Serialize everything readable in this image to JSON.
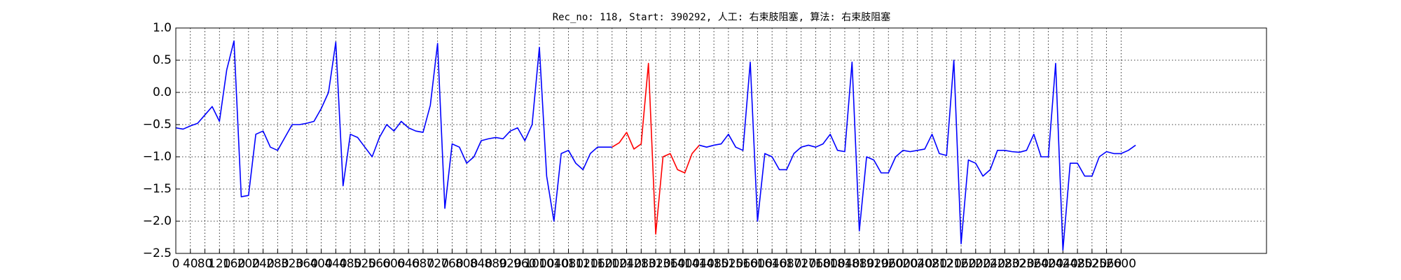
{
  "chart_data": {
    "type": "line",
    "title": "Rec_no: 118, Start: 390292, 人工: 右束肢阻塞, 算法: 右束肢阻塞",
    "x": [
      0,
      20,
      40,
      60,
      80,
      100,
      120,
      140,
      160,
      180,
      200,
      220,
      240,
      260,
      280,
      300,
      320,
      340,
      360,
      380,
      400,
      420,
      440,
      460,
      480,
      500,
      520,
      540,
      560,
      580,
      600,
      620,
      640,
      660,
      680,
      700,
      720,
      740,
      760,
      780,
      800,
      820,
      840,
      860,
      880,
      900,
      920,
      940,
      960,
      980,
      1000,
      1020,
      1040,
      1060,
      1080,
      1100,
      1120,
      1140,
      1160,
      1180,
      1200,
      1220,
      1240,
      1260,
      1280,
      1300,
      1320,
      1340,
      1360,
      1380,
      1400,
      1420,
      1440,
      1460,
      1480,
      1500,
      1520,
      1540,
      1560,
      1580,
      1600,
      1620,
      1640,
      1660,
      1680,
      1700,
      1720,
      1740,
      1760,
      1780,
      1800,
      1820,
      1840,
      1860,
      1880,
      1900,
      1920,
      1940,
      1960,
      1980,
      2000,
      2020,
      2040,
      2060,
      2080,
      2100,
      2120,
      2140,
      2160,
      2180,
      2200,
      2220,
      2240,
      2260,
      2280,
      2300,
      2320,
      2340,
      2360,
      2380,
      2400,
      2420,
      2440,
      2460,
      2480,
      2500,
      2520,
      2540,
      2560,
      2580,
      2600,
      2620,
      2640
    ],
    "series": [
      {
        "color": "#0000ff",
        "values": [
          -0.55,
          -0.57,
          -0.52,
          -0.48,
          -0.35,
          -0.22,
          -0.45,
          0.35,
          0.8,
          -1.62,
          -1.6,
          -0.65,
          -0.6,
          -0.85,
          -0.9,
          -0.7,
          -0.5,
          -0.5,
          -0.48,
          -0.45,
          -0.25,
          0.0,
          0.78,
          -1.45,
          -0.65,
          -0.7,
          -0.85,
          -1.0,
          -0.7,
          -0.5,
          -0.6,
          -0.45,
          -0.55,
          -0.6,
          -0.62,
          -0.2,
          0.76,
          -1.8,
          -0.8,
          -0.85,
          -1.1,
          -1.0,
          -0.75,
          -0.72,
          -0.7,
          -0.72,
          -0.6,
          -0.55,
          -0.75,
          -0.5,
          0.7,
          -1.3,
          -2.0,
          -0.95,
          -0.9,
          -1.1,
          -1.2,
          -0.95,
          -0.85,
          -0.85,
          -0.85,
          null,
          null,
          null,
          null,
          null,
          null,
          null,
          null,
          null,
          null,
          null,
          -0.82,
          -0.85,
          -0.82,
          -0.8,
          -0.65,
          -0.85,
          -0.9,
          0.47,
          -2.0,
          -0.95,
          -1.0,
          -1.2,
          -1.2,
          -0.95,
          -0.85,
          -0.82,
          -0.85,
          -0.8,
          -0.65,
          -0.9,
          -0.92,
          0.47,
          -2.15,
          -1.0,
          -1.05,
          -1.25,
          -1.25,
          -1.0,
          -0.9,
          -0.92,
          -0.9,
          -0.88,
          -0.65,
          -0.95,
          -0.98,
          0.5,
          -2.35,
          -1.05,
          -1.1,
          -1.3,
          -1.2,
          -0.9,
          -0.9,
          -0.92,
          -0.93,
          -0.9,
          -0.65,
          -1.0,
          -1.0,
          0.45,
          -2.45,
          -1.1,
          -1.1,
          -1.3,
          -1.3,
          -1.0,
          -0.92,
          -0.95,
          -0.95,
          -0.9,
          -0.82
        ]
      },
      {
        "color": "#ff0000",
        "values": [
          null,
          null,
          null,
          null,
          null,
          null,
          null,
          null,
          null,
          null,
          null,
          null,
          null,
          null,
          null,
          null,
          null,
          null,
          null,
          null,
          null,
          null,
          null,
          null,
          null,
          null,
          null,
          null,
          null,
          null,
          null,
          null,
          null,
          null,
          null,
          null,
          null,
          null,
          null,
          null,
          null,
          null,
          null,
          null,
          null,
          null,
          null,
          null,
          null,
          null,
          null,
          null,
          null,
          null,
          null,
          null,
          null,
          null,
          null,
          null,
          -0.85,
          -0.78,
          -0.62,
          -0.88,
          -0.8,
          0.45,
          -2.2,
          -1.0,
          -0.95,
          -1.2,
          -1.25,
          -0.95,
          -0.82,
          null,
          null,
          null,
          null,
          null,
          null,
          null,
          null,
          null,
          null,
          null,
          null,
          null,
          null,
          null,
          null,
          null,
          null,
          null,
          null,
          null,
          null,
          null,
          null,
          null,
          null,
          null,
          null,
          null,
          null,
          null,
          null,
          null,
          null,
          null,
          null,
          null,
          null,
          null,
          null,
          null,
          null,
          null,
          null,
          null,
          null,
          null,
          null,
          null,
          null,
          null,
          null,
          null,
          null,
          null,
          null,
          null,
          null,
          null,
          null
        ]
      }
    ],
    "xlim": [
      0,
      3000
    ],
    "xticks": [
      0,
      40,
      80,
      120,
      160,
      200,
      240,
      280,
      320,
      360,
      400,
      440,
      480,
      520,
      560,
      600,
      640,
      680,
      720,
      760,
      800,
      840,
      880,
      920,
      960,
      1000,
      1040,
      1080,
      1120,
      1160,
      1200,
      1240,
      1280,
      1320,
      1360,
      1400,
      1440,
      1480,
      1520,
      1560,
      1600,
      1640,
      1680,
      1720,
      1760,
      1800,
      1840,
      1880,
      1920,
      1960,
      2000,
      2040,
      2080,
      2120,
      2160,
      2200,
      2240,
      2280,
      2320,
      2360,
      2400,
      2440,
      2480,
      2520,
      2560,
      2600
    ],
    "ylim": [
      -2.5,
      1.0
    ],
    "yticks": [
      {
        "value": -2.5,
        "label": "−2.5"
      },
      {
        "value": -2.0,
        "label": "−2.0"
      },
      {
        "value": -1.5,
        "label": "−1.5"
      },
      {
        "value": -1.0,
        "label": "−1.0"
      },
      {
        "value": -0.5,
        "label": "−0.5"
      },
      {
        "value": 0.0,
        "label": "0.0"
      },
      {
        "value": 0.5,
        "label": "0.5"
      },
      {
        "value": 1.0,
        "label": "1.0"
      }
    ],
    "grid": true
  }
}
